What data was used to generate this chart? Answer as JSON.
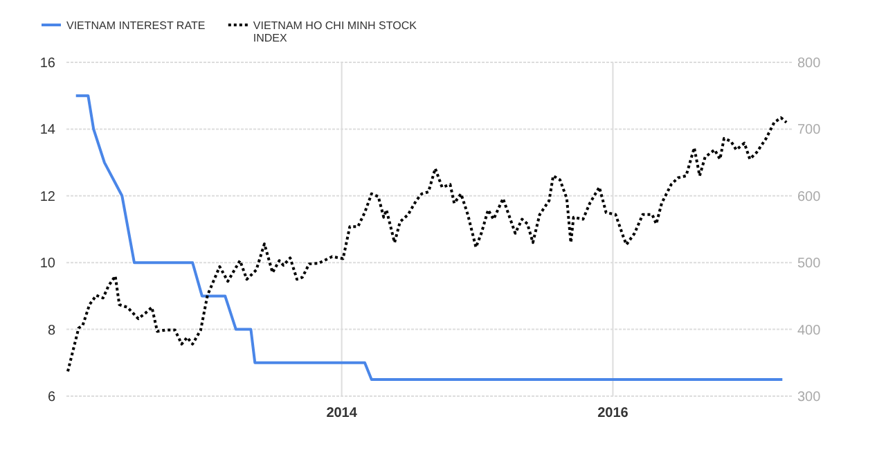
{
  "chart_data": {
    "type": "line",
    "x": [
      2012.04,
      2012.13,
      2012.17,
      2012.25,
      2012.38,
      2012.47,
      2012.9,
      2012.97,
      2013.14,
      2013.22,
      2013.33,
      2013.36,
      2014.17,
      2014.22,
      2017.25
    ],
    "series": [
      {
        "name": "VIETNAM INTEREST RATE",
        "color": "#4a86e8",
        "line_style": "solid",
        "values": [
          15,
          15,
          14,
          13,
          12,
          10,
          10,
          9,
          9,
          8,
          8,
          7,
          7,
          6.5,
          6.5
        ]
      },
      {
        "name": "VIETNAM HO CHI MINH STOCK INDEX",
        "color": "#000000",
        "axis": "y2",
        "line_style": "dotted",
        "x": [
          2011.98,
          2012.06,
          2012.09,
          2012.14,
          2012.19,
          2012.24,
          2012.28,
          2012.33,
          2012.36,
          2012.42,
          2012.5,
          2012.55,
          2012.6,
          2012.64,
          2012.7,
          2012.77,
          2012.82,
          2012.86,
          2012.9,
          2012.96,
          2013.01,
          2013.1,
          2013.16,
          2013.25,
          2013.3,
          2013.37,
          2013.43,
          2013.49,
          2013.54,
          2013.57,
          2013.62,
          2013.67,
          2013.71,
          2013.76,
          2013.83,
          2013.93,
          2014.01,
          2014.06,
          2014.12,
          2014.17,
          2014.22,
          2014.27,
          2014.31,
          2014.33,
          2014.39,
          2014.43,
          2014.49,
          2014.55,
          2014.59,
          2014.64,
          2014.69,
          2014.74,
          2014.8,
          2014.83,
          2014.88,
          2014.93,
          2014.99,
          2015.03,
          2015.08,
          2015.12,
          2015.19,
          2015.28,
          2015.33,
          2015.37,
          2015.41,
          2015.46,
          2015.53,
          2015.56,
          2015.61,
          2015.66,
          2015.69,
          2015.71,
          2015.78,
          2015.83,
          2015.9,
          2015.95,
          2016.02,
          2016.08,
          2016.1,
          2016.16,
          2016.22,
          2016.29,
          2016.32,
          2016.36,
          2016.43,
          2016.48,
          2016.54,
          2016.6,
          2016.64,
          2016.68,
          2016.75,
          2016.79,
          2016.82,
          2016.87,
          2016.91,
          2016.97,
          2017.01,
          2017.06,
          2017.13,
          2017.19,
          2017.24,
          2017.28
        ],
        "values": [
          337,
          402,
          406,
          437,
          451,
          447,
          465,
          480,
          437,
          433,
          416,
          424,
          433,
          397,
          399,
          399,
          378,
          388,
          378,
          399,
          451,
          494,
          472,
          503,
          475,
          489,
          528,
          485,
          503,
          496,
          507,
          475,
          478,
          498,
          499,
          509,
          506,
          554,
          554,
          575,
          603,
          599,
          568,
          579,
          530,
          561,
          572,
          593,
          603,
          606,
          641,
          613,
          617,
          589,
          603,
          572,
          523,
          544,
          579,
          565,
          596,
          544,
          565,
          558,
          530,
          572,
          593,
          630,
          624,
          596,
          530,
          568,
          565,
          589,
          613,
          575,
          572,
          537,
          527,
          544,
          572,
          572,
          558,
          589,
          617,
          627,
          630,
          672,
          630,
          658,
          669,
          655,
          686,
          682,
          669,
          679,
          655,
          665,
          686,
          710,
          717,
          710
        ]
      }
    ],
    "xlim": [
      2011.97,
      2017.32
    ],
    "xticks": [
      2014,
      2016
    ],
    "ylim": [
      6,
      16
    ],
    "yticks": [
      6,
      8,
      10,
      12,
      14,
      16
    ],
    "y2lim": [
      300,
      800
    ],
    "y2ticks": [
      300,
      400,
      500,
      600,
      700,
      800
    ],
    "grid": true,
    "legend": "top left"
  }
}
